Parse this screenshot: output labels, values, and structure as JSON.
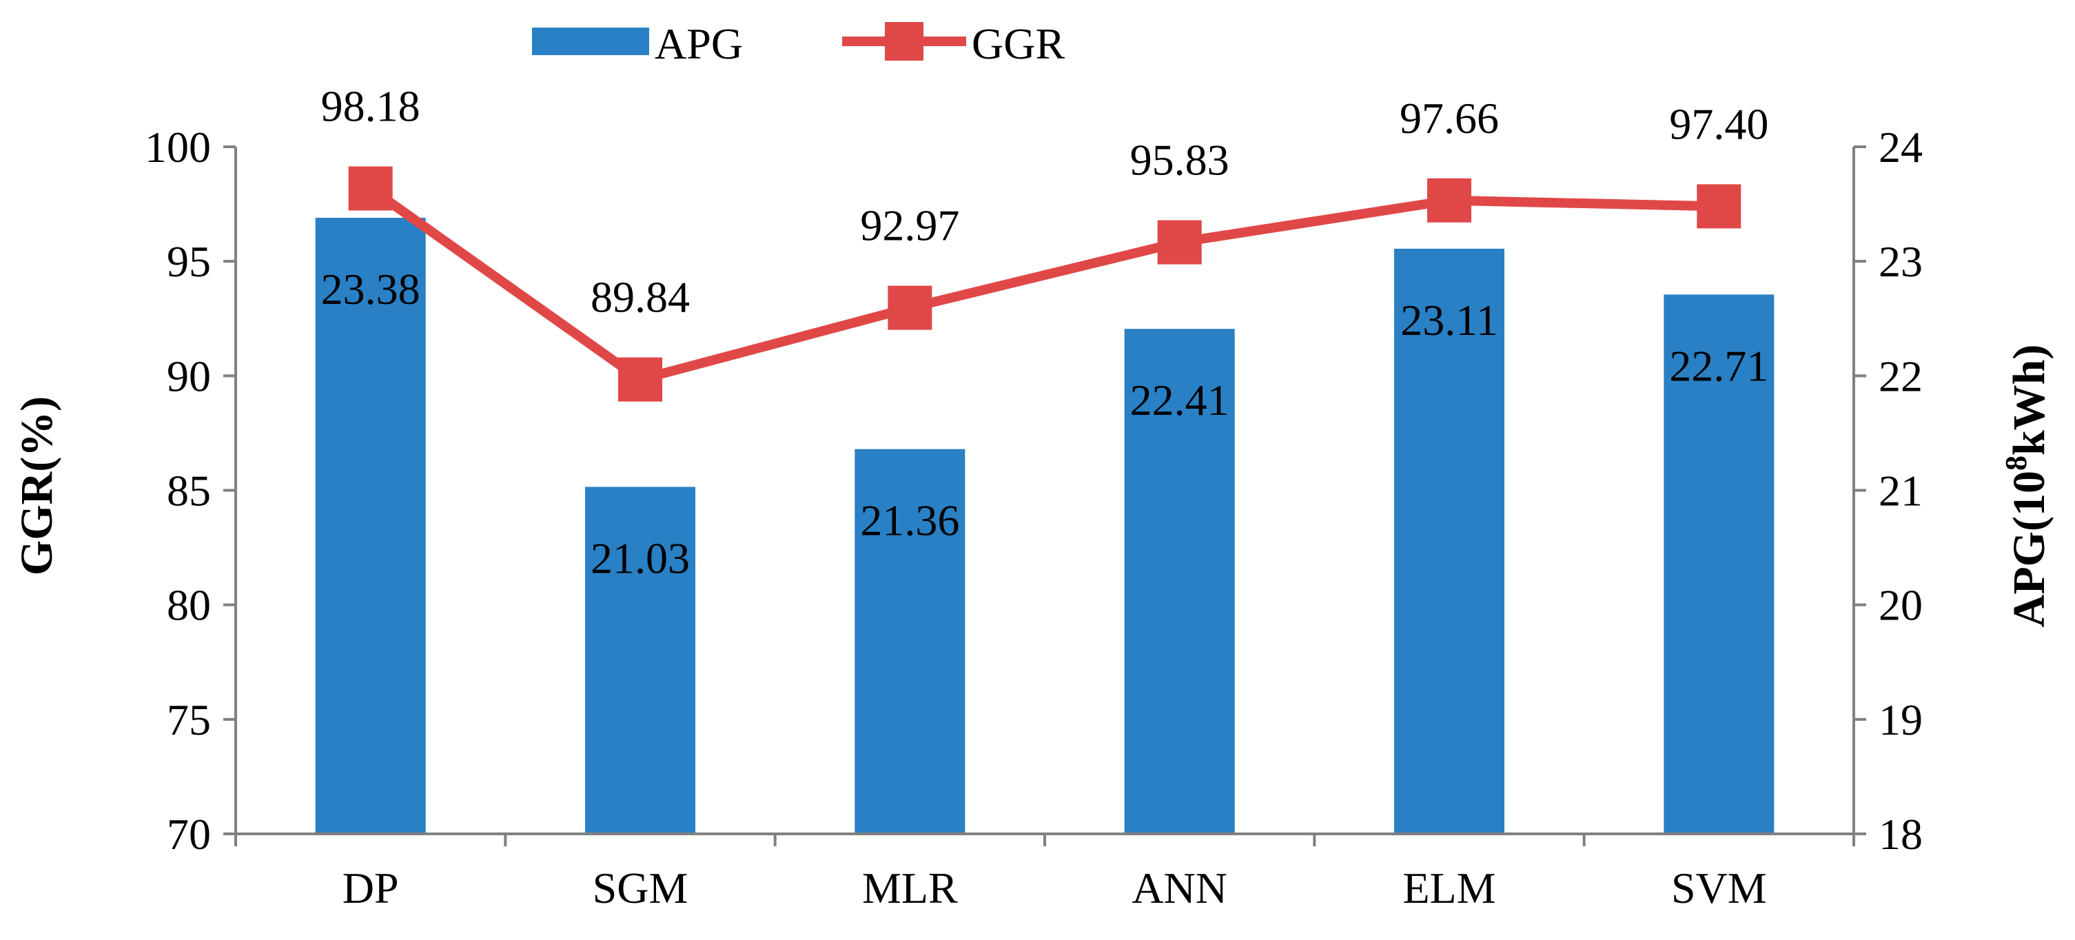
{
  "chart_data": {
    "type": "bar",
    "title": "",
    "categories": [
      "DP",
      "SGM",
      "MLR",
      "ANN",
      "ELM",
      "SVM"
    ],
    "series": [
      {
        "name": "APG",
        "type": "bar",
        "axis": "right",
        "values": [
          23.38,
          21.03,
          21.36,
          22.41,
          23.11,
          22.71
        ],
        "labels": [
          "23.38",
          "21.03",
          "21.36",
          "22.41",
          "23.11",
          "22.71"
        ],
        "color": "#2980C4"
      },
      {
        "name": "GGR",
        "type": "line",
        "axis": "left",
        "marker": "square",
        "values": [
          98.18,
          89.84,
          92.97,
          95.83,
          97.66,
          97.4
        ],
        "labels": [
          "98.18",
          "89.84",
          "92.97",
          "95.83",
          "97.66",
          "97.40"
        ],
        "color": "#E04848"
      }
    ],
    "left_axis": {
      "label": "GGR(%)",
      "ylim": [
        70,
        100
      ],
      "ticks": [
        70,
        75,
        80,
        85,
        90,
        95,
        100
      ]
    },
    "right_axis": {
      "label_prefix": "APG(10",
      "label_sup": "8",
      "label_suffix": "kWh)",
      "ylim": [
        18,
        24
      ],
      "ticks": [
        18,
        19,
        20,
        21,
        22,
        23,
        24
      ]
    },
    "legend": {
      "position": "top-center",
      "entries": [
        "APG",
        "GGR"
      ]
    },
    "grid": false
  }
}
